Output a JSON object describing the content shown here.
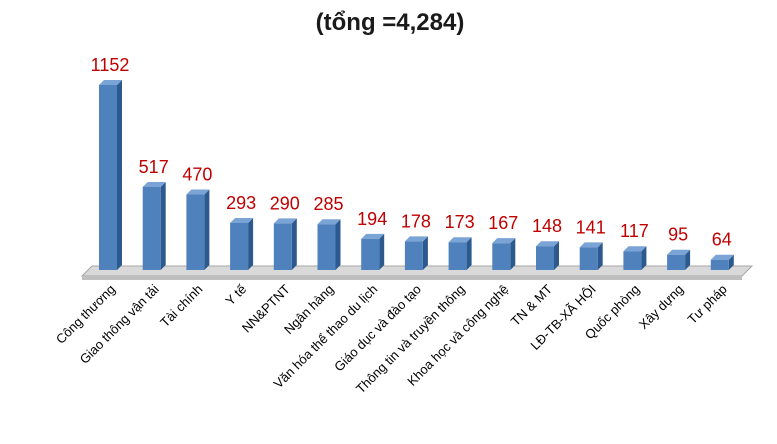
{
  "chart_data": {
    "type": "bar",
    "title": "(tổng =4,284)",
    "categories": [
      "Công thương",
      "Giao thông vận tải",
      "Tài chính",
      "Y tế",
      "NN&PTNT",
      "Ngân hàng",
      "Văn hóa thể thao du lịch",
      "Giáo dục và đào tạo",
      "Thông tin và truyền thông",
      "Khoa học và công nghệ",
      "TN & MT",
      "LĐ-TB-XÃ HỘI",
      "Quốc phòng",
      "Xây dựng",
      "Tư pháp"
    ],
    "values": [
      1152,
      517,
      470,
      293,
      290,
      285,
      194,
      178,
      173,
      167,
      148,
      141,
      117,
      95,
      64
    ],
    "color": "#4f81bd",
    "label_color": "#c00000"
  }
}
